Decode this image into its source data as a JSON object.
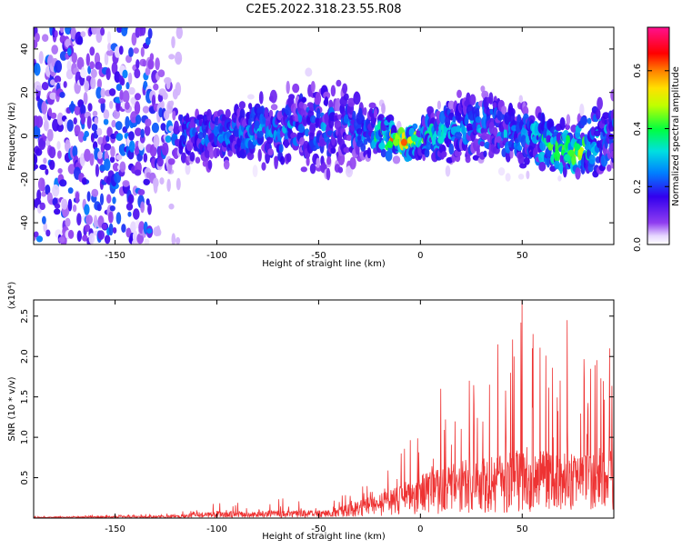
{
  "title": "C2E5.2022.318.23.55.R08",
  "chart_data": [
    {
      "type": "heatmap",
      "xlabel": "Height of straight line (km)",
      "ylabel": "Frequency (Hz)",
      "xlim": [
        -190,
        95
      ],
      "ylim": [
        -50,
        50
      ],
      "xticks": [
        -150,
        -100,
        -50,
        0,
        50
      ],
      "xtick_labels": [
        "-150",
        "-100",
        "-50",
        "0",
        "50"
      ],
      "yticks": [
        -40,
        -20,
        0,
        20,
        40
      ],
      "ytick_labels": [
        "-40",
        "-20",
        "0",
        "20",
        "40"
      ],
      "colorbar": {
        "label": "Normalized spectral amplitude",
        "range": [
          0.0,
          0.75
        ],
        "ticks": [
          0.0,
          0.2,
          0.4,
          0.6
        ],
        "tick_labels": [
          "0.0",
          "0.2",
          "0.4",
          "0.6"
        ],
        "colormap": "rainbow (violet-blue-cyan-green-yellow-red-magenta)"
      },
      "band_profile": [
        {
          "x": -190,
          "center": 0,
          "halfwidth": 50,
          "intensity": 0.15
        },
        {
          "x": -135,
          "center": 0,
          "halfwidth": 50,
          "intensity": 0.15
        },
        {
          "x": -120,
          "center": 0,
          "halfwidth": 12,
          "intensity": 0.2
        },
        {
          "x": -100,
          "center": 0,
          "halfwidth": 14,
          "intensity": 0.22
        },
        {
          "x": -80,
          "center": 2,
          "halfwidth": 15,
          "intensity": 0.22
        },
        {
          "x": -50,
          "center": 5,
          "halfwidth": 22,
          "intensity": 0.2
        },
        {
          "x": -25,
          "center": 2,
          "halfwidth": 15,
          "intensity": 0.2
        },
        {
          "x": -10,
          "center": -3,
          "halfwidth": 6,
          "intensity": 0.55
        },
        {
          "x": 0,
          "center": -2,
          "halfwidth": 10,
          "intensity": 0.3
        },
        {
          "x": 25,
          "center": 5,
          "halfwidth": 18,
          "intensity": 0.22
        },
        {
          "x": 50,
          "center": 0,
          "halfwidth": 15,
          "intensity": 0.22
        },
        {
          "x": 75,
          "center": -7,
          "halfwidth": 12,
          "intensity": 0.4
        },
        {
          "x": 95,
          "center": 0,
          "halfwidth": 18,
          "intensity": 0.22
        }
      ]
    },
    {
      "type": "line",
      "xlabel": "Height of straight line (km)",
      "ylabel": "SNR (10 * v/v)",
      "y_multiplier": "(x10⁴)",
      "xlim": [
        -190,
        95
      ],
      "ylim": [
        0,
        27000
      ],
      "xticks": [
        -150,
        -100,
        -50,
        0,
        50
      ],
      "xtick_labels": [
        "-150",
        "-100",
        "-50",
        "0",
        "50"
      ],
      "yticks": [
        5000,
        10000,
        15000,
        20000,
        25000
      ],
      "ytick_labels": [
        "0.5",
        "1.0",
        "1.5",
        "2.0",
        "2.5"
      ],
      "color": "#ee3333",
      "envelope": [
        {
          "x": -190,
          "typical": 100,
          "peak": 200
        },
        {
          "x": -120,
          "typical": 300,
          "peak": 600
        },
        {
          "x": -110,
          "typical": 600,
          "peak": 1500
        },
        {
          "x": -80,
          "typical": 800,
          "peak": 2500
        },
        {
          "x": -45,
          "typical": 800,
          "peak": 2500
        },
        {
          "x": -35,
          "typical": 1500,
          "peak": 3500
        },
        {
          "x": -20,
          "typical": 2500,
          "peak": 5000
        },
        {
          "x": -5,
          "typical": 4000,
          "peak": 10000
        },
        {
          "x": 5,
          "typical": 5000,
          "peak": 12000
        },
        {
          "x": 20,
          "typical": 6000,
          "peak": 15000
        },
        {
          "x": 40,
          "typical": 6500,
          "peak": 20000
        },
        {
          "x": 50,
          "typical": 7500,
          "peak": 27000
        },
        {
          "x": 60,
          "typical": 7000,
          "peak": 21000
        },
        {
          "x": 80,
          "typical": 6500,
          "peak": 20000
        },
        {
          "x": 95,
          "typical": 7000,
          "peak": 21000
        }
      ],
      "notable_peaks": [
        {
          "x": 10,
          "y": 16000
        },
        {
          "x": 24,
          "y": 17000
        },
        {
          "x": 38,
          "y": 21500
        },
        {
          "x": 46,
          "y": 20000
        },
        {
          "x": 50,
          "y": 27000
        },
        {
          "x": 55,
          "y": 21000
        },
        {
          "x": 72,
          "y": 24500
        },
        {
          "x": 93,
          "y": 21000
        }
      ]
    }
  ]
}
